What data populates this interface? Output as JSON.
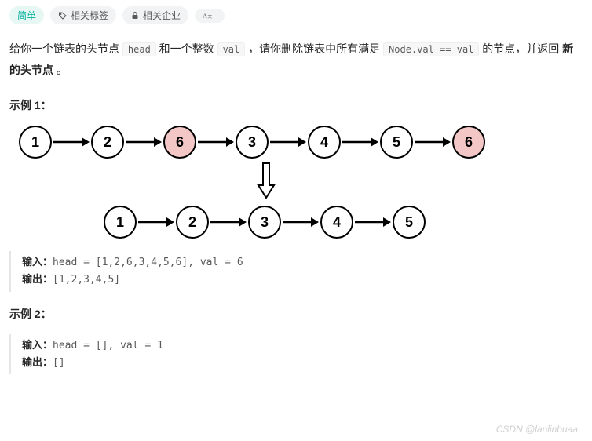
{
  "tags": {
    "difficulty": "简单",
    "related_tags": "相关标签",
    "related_companies": "相关企业",
    "font": ""
  },
  "desc": {
    "p1a": "给你一个链表的头节点 ",
    "code1": "head",
    "p1b": " 和一个整数 ",
    "code2": "val",
    "p1c": " ，请你删除链表中所有满足 ",
    "code3": "Node.val == val",
    "p1d": " 的节点，并返回 ",
    "bold": "新的头节点",
    "p1e": " 。"
  },
  "example1": {
    "title": "示例 1：",
    "row1": [
      "1",
      "2",
      "6",
      "3",
      "4",
      "5",
      "6"
    ],
    "highlight_idx": [
      2,
      6
    ],
    "row2": [
      "1",
      "2",
      "3",
      "4",
      "5"
    ],
    "input_label": "输入：",
    "input_val": "head = [1,2,6,3,4,5,6], val = 6",
    "output_label": "输出：",
    "output_val": "[1,2,3,4,5]"
  },
  "example2": {
    "title": "示例 2：",
    "input_label": "输入：",
    "input_val": "head = [], val = 1",
    "output_label": "输出：",
    "output_val": "[]"
  },
  "diagram_style": {
    "node_border": "#000000",
    "node_fill": "#ffffff",
    "highlight_fill": "#f4c7c7",
    "arrow_color": "#000000"
  },
  "watermark": "CSDN @lanlinbuaa"
}
